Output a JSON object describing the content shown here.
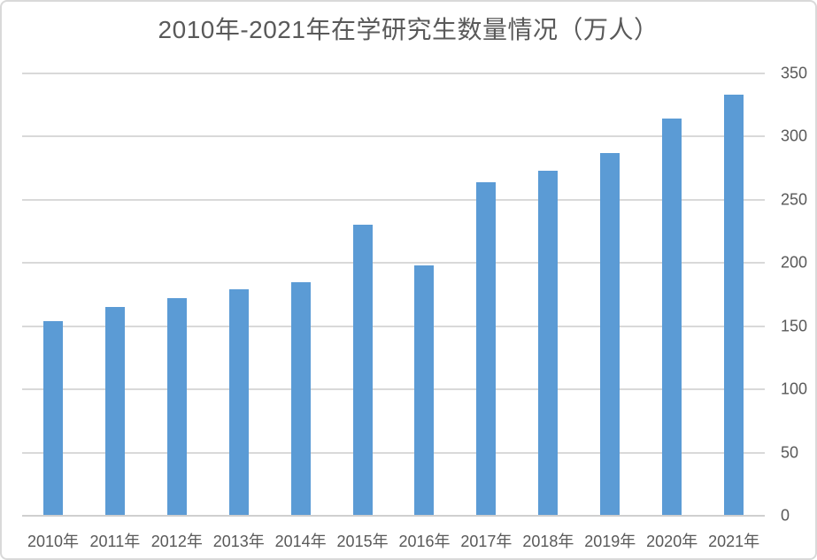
{
  "page": {
    "background_color": "#ffffff",
    "border_color": "#d9d9d9",
    "text_color": "#595959"
  },
  "chart_data": {
    "type": "bar",
    "title": "2010年-2021年在学研究生数量情况（万人）",
    "unit_label": "万人",
    "categories": [
      "2010年",
      "2011年",
      "2012年",
      "2013年",
      "2014年",
      "2015年",
      "2016年",
      "2017年",
      "2018年",
      "2019年",
      "2020年",
      "2021年"
    ],
    "values": [
      154,
      165,
      172,
      179,
      185,
      230,
      198,
      264,
      273,
      287,
      314,
      333
    ],
    "xlabel": "",
    "ylabel": "",
    "ylim": [
      0,
      350
    ],
    "yticks": [
      0,
      50,
      100,
      150,
      200,
      250,
      300,
      350
    ],
    "ytick_side": "right",
    "grid": "horizontal",
    "legend": "none",
    "bar_color": "#5b9bd5",
    "gridline_color": "#d9d9d9",
    "axis_line_color": "#cfcfcf"
  }
}
